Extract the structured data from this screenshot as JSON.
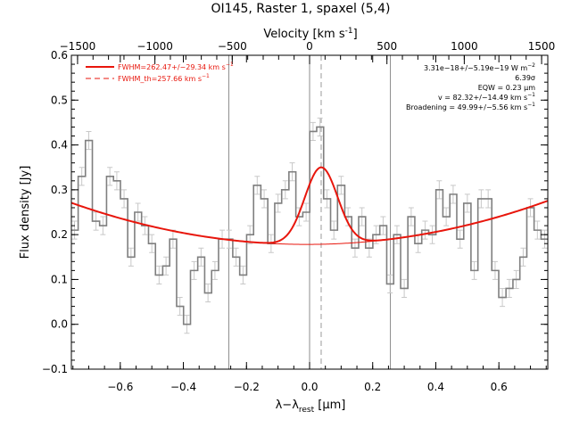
{
  "chart_data": {
    "type": "line",
    "title": "OI145, Raster 1, spaxel (5,4)",
    "xlabel": "λ−λ",
    "xlabel_sub": "rest",
    "xlabel_unit": " [μm]",
    "ylabel": "Flux density [Jy]",
    "top_axis_label": "Velocity [km s",
    "top_axis_label_sup": "-1",
    "top_axis_label_end": "]",
    "xlim": [
      -0.755,
      0.755
    ],
    "ylim": [
      -0.1,
      0.6
    ],
    "top_xlim": [
      -1540,
      1540
    ],
    "grid": false,
    "x_ticks": [
      {
        "value": -0.6,
        "label": "−0.6"
      },
      {
        "value": -0.4,
        "label": "−0.4"
      },
      {
        "value": -0.2,
        "label": "−0.2"
      },
      {
        "value": 0.0,
        "label": "0.0"
      },
      {
        "value": 0.2,
        "label": "0.2"
      },
      {
        "value": 0.4,
        "label": "0.4"
      },
      {
        "value": 0.6,
        "label": "0.6"
      }
    ],
    "y_ticks": [
      {
        "value": -0.1,
        "label": "−0.1"
      },
      {
        "value": 0.0,
        "label": "0.0"
      },
      {
        "value": 0.1,
        "label": "0.1"
      },
      {
        "value": 0.2,
        "label": "0.2"
      },
      {
        "value": 0.3,
        "label": "0.3"
      },
      {
        "value": 0.4,
        "label": "0.4"
      },
      {
        "value": 0.5,
        "label": "0.5"
      },
      {
        "value": 0.6,
        "label": "0.6"
      }
    ],
    "top_ticks": [
      {
        "value": -1500,
        "label": "−1500"
      },
      {
        "value": -1000,
        "label": "−1000"
      },
      {
        "value": -500,
        "label": "−500"
      },
      {
        "value": 0,
        "label": "0"
      },
      {
        "value": 500,
        "label": "500"
      },
      {
        "value": 1000,
        "label": "1000"
      },
      {
        "value": 1500,
        "label": "1500"
      }
    ],
    "spectrum": {
      "x": [
        -0.745,
        -0.722,
        -0.7,
        -0.677,
        -0.655,
        -0.633,
        -0.611,
        -0.588,
        -0.566,
        -0.544,
        -0.522,
        -0.5,
        -0.477,
        -0.455,
        -0.433,
        -0.411,
        -0.389,
        -0.366,
        -0.344,
        -0.322,
        -0.3,
        -0.277,
        -0.255,
        -0.233,
        -0.211,
        -0.189,
        -0.166,
        -0.144,
        -0.122,
        -0.1,
        -0.077,
        -0.055,
        -0.033,
        -0.011,
        0.011,
        0.033,
        0.055,
        0.077,
        0.1,
        0.122,
        0.144,
        0.166,
        0.189,
        0.211,
        0.233,
        0.255,
        0.277,
        0.3,
        0.322,
        0.344,
        0.366,
        0.389,
        0.411,
        0.433,
        0.455,
        0.477,
        0.5,
        0.522,
        0.544,
        0.566,
        0.588,
        0.611,
        0.633,
        0.655,
        0.677,
        0.7,
        0.722,
        0.745
      ],
      "y": [
        0.21,
        0.33,
        0.41,
        0.23,
        0.22,
        0.33,
        0.32,
        0.28,
        0.15,
        0.25,
        0.22,
        0.18,
        0.11,
        0.13,
        0.19,
        0.04,
        0.0,
        0.12,
        0.15,
        0.07,
        0.12,
        0.19,
        0.19,
        0.15,
        0.11,
        0.2,
        0.31,
        0.28,
        0.18,
        0.27,
        0.3,
        0.34,
        0.24,
        0.25,
        0.43,
        0.44,
        0.28,
        0.21,
        0.31,
        0.24,
        0.17,
        0.24,
        0.17,
        0.2,
        0.22,
        0.09,
        0.2,
        0.08,
        0.24,
        0.18,
        0.21,
        0.2,
        0.3,
        0.24,
        0.29,
        0.19,
        0.27,
        0.12,
        0.28,
        0.28,
        0.12,
        0.06,
        0.08,
        0.1,
        0.15,
        0.26,
        0.21,
        0.19
      ],
      "err": 0.02,
      "color": "#7f7f7f"
    },
    "model_fit": {
      "name": "FWHM=262.47+/−29.34 km s",
      "sup": "−1",
      "baseline_poly": [
        0.1668,
        0.003,
        0.1782
      ],
      "gauss_amp": 0.1716,
      "gauss_center": 0.0367,
      "gauss_fwhm": 0.1229,
      "color": "#e8160c"
    },
    "theory_line": {
      "name": "FWHM_th=257.66 km s",
      "sup": "−1",
      "x_center": 0.0367,
      "style": "dashed",
      "color": "#e8160c"
    },
    "vertical_lines": [
      -0.256,
      0.0,
      0.256
    ],
    "annotations": [
      {
        "pre": "3.31e−18+/−5.19e−19 W m",
        "sup": "−2"
      },
      {
        "pre": "6.39σ",
        "sup": ""
      },
      {
        "pre": "EQW = 0.23 μm",
        "sup": ""
      },
      {
        "pre": "v = 82.32+/−14.49 km s",
        "sup": "−1"
      },
      {
        "pre": "Broadening = 49.99+/−5.56 km s",
        "sup": "−1"
      }
    ],
    "legend_placement": "top-left"
  }
}
